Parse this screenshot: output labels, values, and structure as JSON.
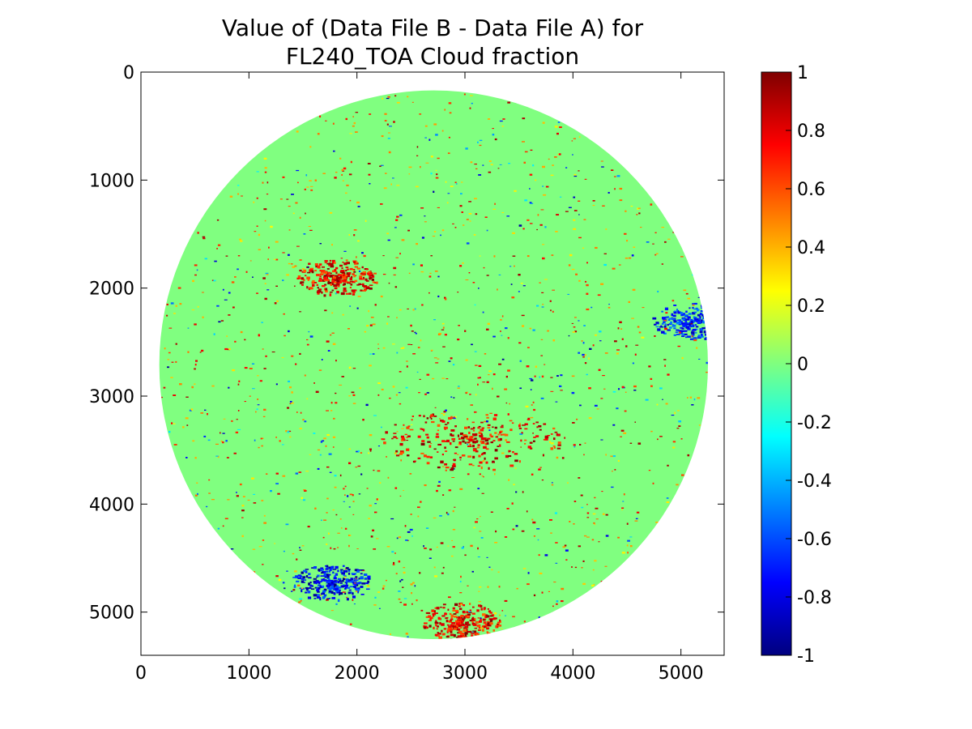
{
  "chart_data": {
    "type": "heatmap",
    "title_lines": [
      "Value of (Data File B - Data File A) for",
      "FL240_TOA Cloud fraction"
    ],
    "xlim": [
      0,
      5400
    ],
    "ylim": [
      5400,
      0
    ],
    "xticks": [
      "0",
      "1000",
      "2000",
      "3000",
      "4000",
      "5000"
    ],
    "yticks": [
      "0",
      "1000",
      "2000",
      "3000",
      "4000",
      "5000"
    ],
    "colorbar": {
      "range": [
        -1,
        1
      ],
      "ticks": [
        "1",
        "0.8",
        "0.6",
        "0.4",
        "0.2",
        "0",
        "-0.2",
        "-0.4",
        "-0.6",
        "-0.8",
        "-1"
      ],
      "colormap": "jet",
      "colors": [
        "#00007f",
        "#0000ff",
        "#007fff",
        "#00ffff",
        "#7fff7f",
        "#ffff00",
        "#ff7f00",
        "#ff0000",
        "#7f0000"
      ]
    },
    "disk": {
      "center_x": 2710,
      "center_y": 2710,
      "radius": 2540,
      "background_value": 0,
      "background_color": "#80ff80"
    },
    "grid": false,
    "legend": "none",
    "features": [
      {
        "label": "central band of strong positive difference",
        "value": 1,
        "x": 3050,
        "y": 3400
      },
      {
        "label": "north-west band positive",
        "value": 1,
        "x": 1820,
        "y": 1900
      },
      {
        "label": "east-limb negative patch",
        "value": -0.9,
        "x": 5100,
        "y": 2300
      },
      {
        "label": "south-west negative patch",
        "value": -1,
        "x": 1760,
        "y": 4720
      },
      {
        "label": "southern positive patch",
        "value": 1,
        "x": 2950,
        "y": 5080
      }
    ]
  }
}
